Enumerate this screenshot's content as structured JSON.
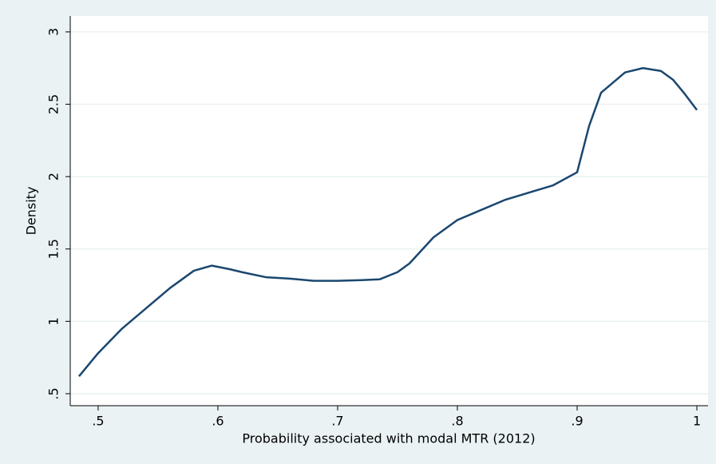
{
  "chart_data": {
    "type": "line",
    "x_label": "Probability associated with modal MTR (2012)",
    "y_label": "Density",
    "x": [
      0.484,
      0.5,
      0.52,
      0.54,
      0.56,
      0.58,
      0.595,
      0.61,
      0.62,
      0.64,
      0.66,
      0.68,
      0.7,
      0.72,
      0.735,
      0.75,
      0.76,
      0.78,
      0.8,
      0.82,
      0.84,
      0.86,
      0.88,
      0.9,
      0.91,
      0.92,
      0.94,
      0.955,
      0.97,
      0.98,
      0.99,
      1.0
    ],
    "series": [
      {
        "name": "Density",
        "color": "#1a476f",
        "values": [
          0.62,
          0.78,
          0.95,
          1.09,
          1.23,
          1.35,
          1.385,
          1.36,
          1.34,
          1.305,
          1.295,
          1.28,
          1.28,
          1.285,
          1.29,
          1.34,
          1.4,
          1.58,
          1.7,
          1.77,
          1.84,
          1.89,
          1.94,
          2.03,
          2.35,
          2.58,
          2.72,
          2.75,
          2.73,
          2.67,
          2.57,
          2.46
        ]
      }
    ],
    "xlim": [
      0.4767,
      1.0093
    ],
    "ylim": [
      0.417,
      3.11
    ],
    "xticks": [
      {
        "value": 0.5,
        "label": ".5"
      },
      {
        "value": 0.6,
        "label": ".6"
      },
      {
        "value": 0.7,
        "label": ".7"
      },
      {
        "value": 0.8,
        "label": ".8"
      },
      {
        "value": 0.9,
        "label": ".9"
      },
      1
    ],
    "yticks": [
      {
        "value": 0.5,
        "label": ".5"
      },
      1,
      1.5,
      2,
      2.5,
      3
    ],
    "grid": true
  }
}
